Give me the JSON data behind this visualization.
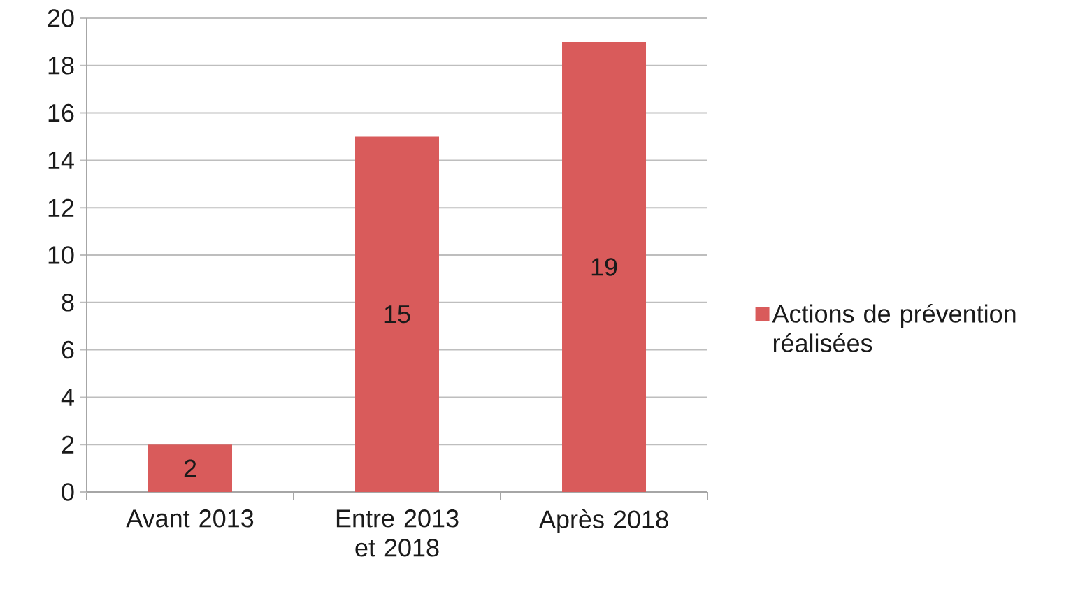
{
  "chart_data": {
    "type": "bar",
    "categories": [
      "Avant 2013",
      "Entre 2013 et 2018",
      "Après 2018"
    ],
    "series": [
      {
        "name": "Actions de prévention réalisées",
        "color": "#d95b5b",
        "values": [
          2,
          15,
          19
        ]
      }
    ],
    "ylim": [
      0,
      20
    ],
    "yticks": [
      0,
      2,
      4,
      6,
      8,
      10,
      12,
      14,
      16,
      18,
      20
    ],
    "grid": "y",
    "legend": "right",
    "data_labels": true
  }
}
